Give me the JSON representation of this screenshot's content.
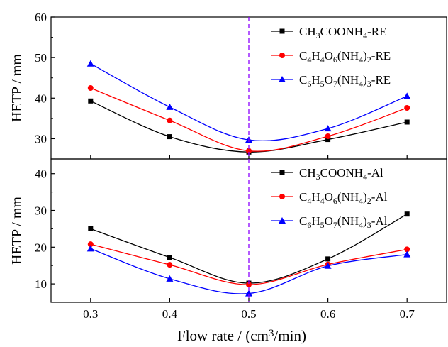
{
  "chart_data": [
    {
      "type": "line",
      "panel": "top",
      "title": "",
      "xlabel": "",
      "ylabel": "HETP / mm",
      "xlim": [
        0.25,
        0.75
      ],
      "ylim": [
        25,
        60
      ],
      "yticks": [
        30,
        40,
        50,
        60
      ],
      "ytick_labels": [
        "30",
        "40",
        "50",
        "60"
      ],
      "grid": false,
      "legend": "top-right",
      "series": [
        {
          "name": "CH3COONH4-RE",
          "legend_parts": [
            [
              "CH",
              ""
            ],
            [
              "3",
              "sub"
            ],
            [
              "COONH",
              ""
            ],
            [
              "4",
              "sub"
            ],
            [
              "-RE",
              ""
            ]
          ],
          "color": "#000000",
          "marker": "square",
          "x": [
            0.3,
            0.4,
            0.5,
            0.6,
            0.7
          ],
          "y": [
            39.3,
            30.5,
            26.7,
            29.8,
            34.1
          ]
        },
        {
          "name": "C4H4O6(NH4)2-RE",
          "legend_parts": [
            [
              "C",
              ""
            ],
            [
              "4",
              "sub"
            ],
            [
              "H",
              ""
            ],
            [
              "4",
              "sub"
            ],
            [
              "O",
              ""
            ],
            [
              "6",
              "sub"
            ],
            [
              "(NH",
              ""
            ],
            [
              "4",
              "sub"
            ],
            [
              ")",
              ""
            ],
            [
              "2",
              "sub"
            ],
            [
              "-RE",
              ""
            ]
          ],
          "color": "#ff0000",
          "marker": "circle",
          "x": [
            0.3,
            0.4,
            0.5,
            0.6,
            0.7
          ],
          "y": [
            42.5,
            34.5,
            27.0,
            30.6,
            37.6
          ]
        },
        {
          "name": "C6H5O7(NH4)3-RE",
          "legend_parts": [
            [
              "C",
              ""
            ],
            [
              "6",
              "sub"
            ],
            [
              "H",
              ""
            ],
            [
              "5",
              "sub"
            ],
            [
              "O",
              ""
            ],
            [
              "7",
              "sub"
            ],
            [
              "(NH",
              ""
            ],
            [
              "4",
              "sub"
            ],
            [
              ")",
              ""
            ],
            [
              "3",
              "sub"
            ],
            [
              "-RE",
              ""
            ]
          ],
          "color": "#0000ff",
          "marker": "triangle",
          "x": [
            0.3,
            0.4,
            0.5,
            0.6,
            0.7
          ],
          "y": [
            48.5,
            37.8,
            29.7,
            32.5,
            40.5
          ]
        }
      ]
    },
    {
      "type": "line",
      "panel": "bottom",
      "title": "",
      "xlabel": "Flow rate / (cm3/min)",
      "xlabel_parts": [
        [
          "Flow rate / (cm",
          ""
        ],
        [
          "3",
          "sup"
        ],
        [
          "/min)",
          ""
        ]
      ],
      "ylabel": "HETP / mm",
      "xlim": [
        0.25,
        0.75
      ],
      "ylim": [
        5,
        44
      ],
      "xticks": [
        0.3,
        0.4,
        0.5,
        0.6,
        0.7
      ],
      "xtick_labels": [
        "0.3",
        "0.4",
        "0.5",
        "0.6",
        "0.7"
      ],
      "yticks": [
        10,
        20,
        30,
        40
      ],
      "ytick_labels": [
        "10",
        "20",
        "30",
        "40"
      ],
      "grid": false,
      "legend": "top-right",
      "series": [
        {
          "name": "CH3COONH4-Al",
          "legend_parts": [
            [
              "CH",
              ""
            ],
            [
              "3",
              "sub"
            ],
            [
              "COONH",
              ""
            ],
            [
              "4",
              "sub"
            ],
            [
              "-Al",
              ""
            ]
          ],
          "color": "#000000",
          "marker": "square",
          "x": [
            0.3,
            0.4,
            0.5,
            0.6,
            0.7
          ],
          "y": [
            25.0,
            17.2,
            10.2,
            16.8,
            29.0
          ]
        },
        {
          "name": "C4H4O6(NH4)2-Al",
          "legend_parts": [
            [
              "C",
              ""
            ],
            [
              "4",
              "sub"
            ],
            [
              "H",
              ""
            ],
            [
              "4",
              "sub"
            ],
            [
              "O",
              ""
            ],
            [
              "6",
              "sub"
            ],
            [
              "(NH",
              ""
            ],
            [
              "4",
              "sub"
            ],
            [
              ")",
              ""
            ],
            [
              "2",
              "sub"
            ],
            [
              "-Al",
              ""
            ]
          ],
          "color": "#ff0000",
          "marker": "circle",
          "x": [
            0.3,
            0.4,
            0.5,
            0.6,
            0.7
          ],
          "y": [
            20.8,
            15.2,
            9.8,
            15.3,
            19.4
          ]
        },
        {
          "name": "C6H5O7(NH4)3-Al",
          "legend_parts": [
            [
              "C",
              ""
            ],
            [
              "6",
              "sub"
            ],
            [
              "H",
              ""
            ],
            [
              "5",
              "sub"
            ],
            [
              "O",
              ""
            ],
            [
              "7",
              "sub"
            ],
            [
              "(NH",
              ""
            ],
            [
              "4",
              "sub"
            ],
            [
              ")",
              ""
            ],
            [
              "3",
              "sub"
            ],
            [
              "-Al",
              ""
            ]
          ],
          "color": "#0000ff",
          "marker": "triangle",
          "x": [
            0.3,
            0.4,
            0.5,
            0.6,
            0.7
          ],
          "y": [
            19.6,
            11.4,
            7.4,
            14.9,
            18.0
          ]
        }
      ]
    }
  ],
  "reference_line": {
    "x": 0.5,
    "color": "#8b00ff",
    "style": "dashed"
  }
}
